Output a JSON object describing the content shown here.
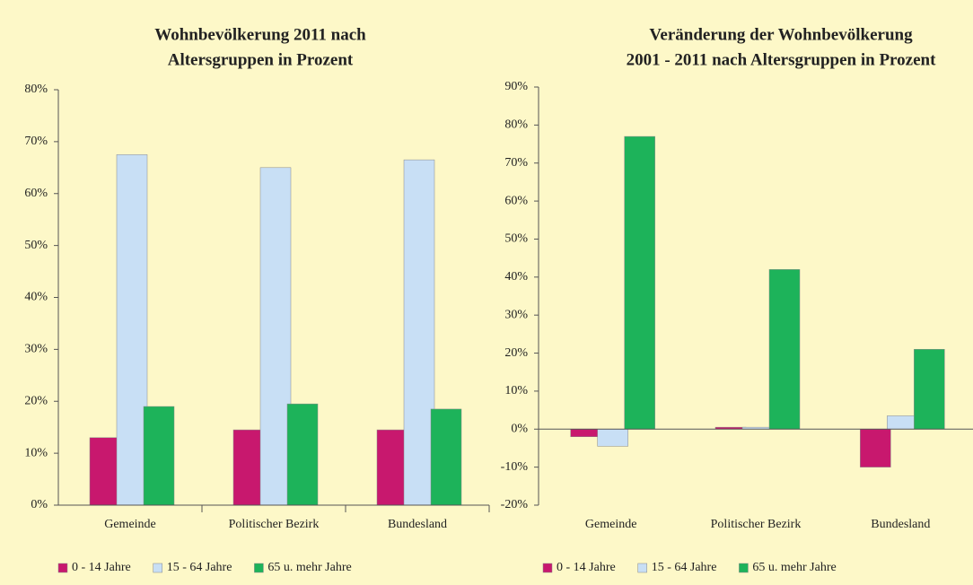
{
  "chart_data": [
    {
      "type": "bar",
      "title": [
        "Wohnbevölkerung 2011 nach",
        "Altersgruppen in Prozent"
      ],
      "categories": [
        "Gemeinde",
        "Politischer Bezirk",
        "Bundesland"
      ],
      "series": [
        {
          "name": "0 - 14 Jahre",
          "color": "#c8186e",
          "values": [
            13,
            14.5,
            14.5
          ]
        },
        {
          "name": "15 - 64 Jahre",
          "color": "#c8dff5",
          "values": [
            67.5,
            65,
            66.5
          ]
        },
        {
          "name": "65 u. mehr Jahre",
          "color": "#1db35a",
          "values": [
            19,
            19.5,
            18.5
          ]
        }
      ],
      "ylim": [
        0,
        80
      ],
      "yticks": [
        {
          "value": 0,
          "label": "0%"
        },
        {
          "value": 10,
          "label": "10%"
        },
        {
          "value": 20,
          "label": "20%"
        },
        {
          "value": 30,
          "label": "30%"
        },
        {
          "value": 40,
          "label": "40%"
        },
        {
          "value": 50,
          "label": "50%"
        },
        {
          "value": 60,
          "label": "60%"
        },
        {
          "value": 70,
          "label": "70%"
        },
        {
          "value": 80,
          "label": "80%"
        }
      ]
    },
    {
      "type": "bar",
      "title": [
        "Veränderung der Wohnbevölkerung",
        "2001 - 2011 nach Altersgruppen in Prozent"
      ],
      "categories": [
        "Gemeinde",
        "Politischer Bezirk",
        "Bundesland"
      ],
      "series": [
        {
          "name": "0 - 14 Jahre",
          "color": "#c8186e",
          "values": [
            -2,
            0.5,
            -10
          ]
        },
        {
          "name": "15 - 64 Jahre",
          "color": "#c8dff5",
          "values": [
            -4.5,
            0.5,
            3.5
          ]
        },
        {
          "name": "65 u. mehr Jahre",
          "color": "#1db35a",
          "values": [
            77,
            42,
            21
          ]
        }
      ],
      "ylim": [
        -20,
        90
      ],
      "yticks": [
        {
          "value": -20,
          "label": "-20%"
        },
        {
          "value": -10,
          "label": "-10%"
        },
        {
          "value": 0,
          "label": "0%"
        },
        {
          "value": 10,
          "label": "10%"
        },
        {
          "value": 20,
          "label": "20%"
        },
        {
          "value": 30,
          "label": "30%"
        },
        {
          "value": 40,
          "label": "40%"
        },
        {
          "value": 50,
          "label": "50%"
        },
        {
          "value": 60,
          "label": "60%"
        },
        {
          "value": 70,
          "label": "70%"
        },
        {
          "value": 80,
          "label": "80%"
        },
        {
          "value": 90,
          "label": "90%"
        }
      ]
    }
  ]
}
